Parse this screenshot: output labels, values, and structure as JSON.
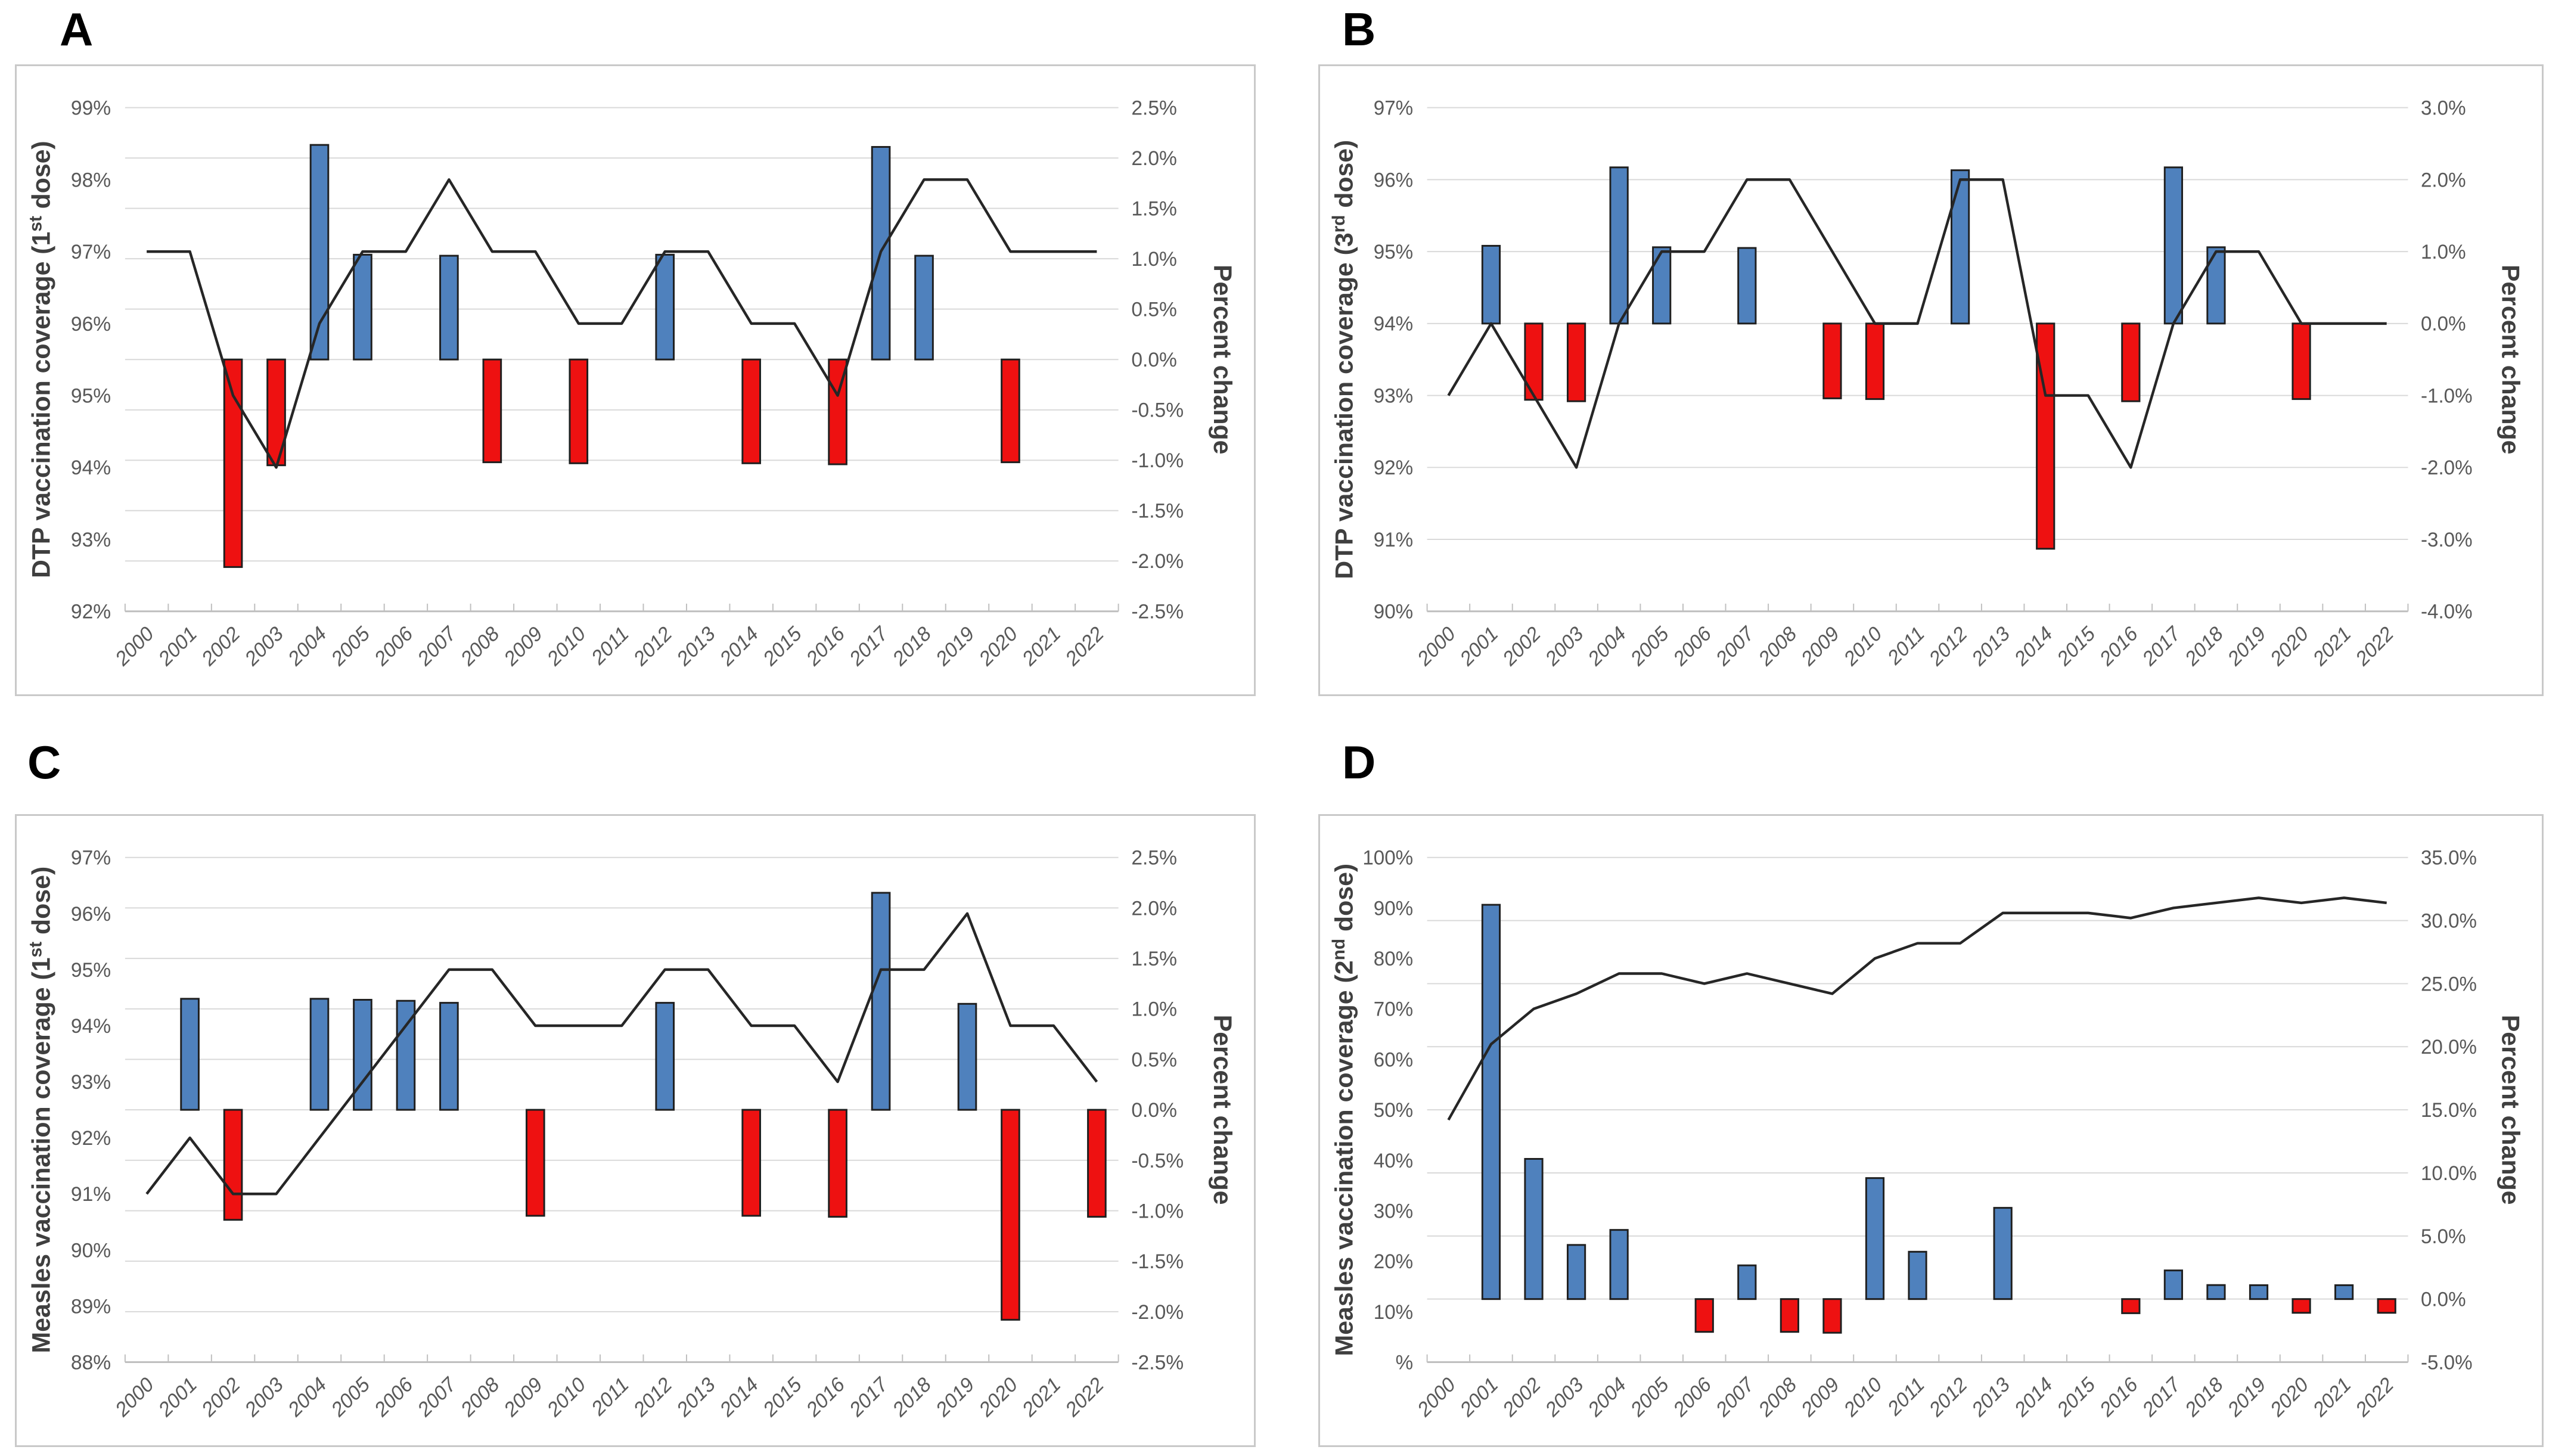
{
  "colors": {
    "bar_positive": "#4f81bd",
    "bar_negative": "#ee1111",
    "bar_border": "#1f1f1f",
    "line": "#262626",
    "grid": "#d9d9d9",
    "axis": "#bfbfbf",
    "tick_text": "#595959",
    "title_text": "#3f3f3f",
    "panel_border": "#c9c9c9",
    "background": "#ffffff"
  },
  "chart_data": [
    {
      "panel_label": "A",
      "type": "bar",
      "subtype": "combo-bar-line",
      "grid": true,
      "x_categories": [
        "2000",
        "2001",
        "2002",
        "2003",
        "2004",
        "2005",
        "2006",
        "2007",
        "2008",
        "2009",
        "2010",
        "2011",
        "2012",
        "2013",
        "2014",
        "2015",
        "2016",
        "2017",
        "2018",
        "2019",
        "2020",
        "2021",
        "2022"
      ],
      "left_axis": {
        "title_pre": "DTP vaccination coverage (1",
        "title_sup": "st",
        "title_post": " dose)",
        "min": 92,
        "max": 99,
        "ticks": [
          {
            "v": 99,
            "t": "99%"
          },
          {
            "v": 98,
            "t": "98%"
          },
          {
            "v": 97,
            "t": "97%"
          },
          {
            "v": 96,
            "t": "96%"
          },
          {
            "v": 95,
            "t": "95%"
          },
          {
            "v": 94,
            "t": "94%"
          },
          {
            "v": 93,
            "t": "93%"
          },
          {
            "v": 92,
            "t": "92%"
          }
        ]
      },
      "right_axis": {
        "title": "Percent change",
        "min": -2.5,
        "max": 2.5,
        "ticks": [
          {
            "v": 2.5,
            "t": "2.5%"
          },
          {
            "v": 2.0,
            "t": "2.0%"
          },
          {
            "v": 1.5,
            "t": "1.5%"
          },
          {
            "v": 1.0,
            "t": "1.0%"
          },
          {
            "v": 0.5,
            "t": "0.5%"
          },
          {
            "v": 0.0,
            "t": "0.0%"
          },
          {
            "v": -0.5,
            "t": "-0.5%"
          },
          {
            "v": -1.0,
            "t": "-1.0%"
          },
          {
            "v": -1.5,
            "t": "-1.5%"
          },
          {
            "v": -2.0,
            "t": "-2.0%"
          },
          {
            "v": -2.5,
            "t": "-2.5%"
          }
        ]
      },
      "line_series": {
        "name": "DTP 1st dose coverage",
        "axis": "left",
        "values": [
          97,
          97,
          95,
          94,
          96,
          97,
          97,
          98,
          97,
          97,
          96,
          96,
          97,
          97,
          96,
          96,
          95,
          97,
          98,
          98,
          97,
          97,
          97
        ]
      },
      "bar_series": {
        "name": "Percent change",
        "axis": "right",
        "values": [
          null,
          0,
          -2.06,
          -1.05,
          2.13,
          1.04,
          0,
          1.03,
          -1.02,
          0,
          -1.03,
          0,
          1.04,
          0,
          -1.03,
          0,
          -1.04,
          2.11,
          1.03,
          0,
          -1.02,
          0,
          0
        ]
      }
    },
    {
      "panel_label": "B",
      "type": "bar",
      "subtype": "combo-bar-line",
      "grid": true,
      "x_categories": [
        "2000",
        "2001",
        "2002",
        "2003",
        "2004",
        "2005",
        "2006",
        "2007",
        "2008",
        "2009",
        "2010",
        "2011",
        "2012",
        "2013",
        "2014",
        "2015",
        "2016",
        "2017",
        "2018",
        "2019",
        "2020",
        "2021",
        "2022"
      ],
      "left_axis": {
        "title_pre": "DTP vaccination coverage (3",
        "title_sup": "rd",
        "title_post": " dose)",
        "min": 90,
        "max": 97,
        "ticks": [
          {
            "v": 97,
            "t": "97%"
          },
          {
            "v": 96,
            "t": "96%"
          },
          {
            "v": 95,
            "t": "95%"
          },
          {
            "v": 94,
            "t": "94%"
          },
          {
            "v": 93,
            "t": "93%"
          },
          {
            "v": 92,
            "t": "92%"
          },
          {
            "v": 91,
            "t": "91%"
          },
          {
            "v": 90,
            "t": "90%"
          }
        ]
      },
      "right_axis": {
        "title": "Percent change",
        "min": -4.0,
        "max": 3.0,
        "ticks": [
          {
            "v": 3.0,
            "t": "3.0%"
          },
          {
            "v": 2.0,
            "t": "2.0%"
          },
          {
            "v": 1.0,
            "t": "1.0%"
          },
          {
            "v": 0.0,
            "t": "0.0%"
          },
          {
            "v": -1.0,
            "t": "-1.0%"
          },
          {
            "v": -2.0,
            "t": "-2.0%"
          },
          {
            "v": -3.0,
            "t": "-3.0%"
          },
          {
            "v": -4.0,
            "t": "-4.0%"
          }
        ]
      },
      "line_series": {
        "name": "DTP 3rd dose coverage",
        "axis": "left",
        "values": [
          93,
          94,
          93,
          92,
          94,
          95,
          95,
          96,
          96,
          95,
          94,
          94,
          96,
          96,
          93,
          93,
          92,
          94,
          95,
          95,
          94,
          94,
          94
        ]
      },
      "bar_series": {
        "name": "Percent change",
        "axis": "right",
        "values": [
          null,
          1.08,
          -1.06,
          -1.08,
          2.17,
          1.06,
          0,
          1.05,
          0,
          -1.04,
          -1.05,
          0,
          2.13,
          0,
          -3.13,
          0,
          -1.08,
          2.17,
          1.06,
          0,
          -1.05,
          0,
          0
        ]
      }
    },
    {
      "panel_label": "C",
      "type": "bar",
      "subtype": "combo-bar-line",
      "grid": true,
      "x_categories": [
        "2000",
        "2001",
        "2002",
        "2003",
        "2004",
        "2005",
        "2006",
        "2007",
        "2008",
        "2009",
        "2010",
        "2011",
        "2012",
        "2013",
        "2014",
        "2015",
        "2016",
        "2017",
        "2018",
        "2019",
        "2020",
        "2021",
        "2022"
      ],
      "left_axis": {
        "title_pre": "Measles vaccination coverage (1",
        "title_sup": "st",
        "title_post": " dose)",
        "min": 88,
        "max": 97,
        "ticks": [
          {
            "v": 97,
            "t": "97%"
          },
          {
            "v": 96,
            "t": "96%"
          },
          {
            "v": 95,
            "t": "95%"
          },
          {
            "v": 94,
            "t": "94%"
          },
          {
            "v": 93,
            "t": "93%"
          },
          {
            "v": 92,
            "t": "92%"
          },
          {
            "v": 91,
            "t": "91%"
          },
          {
            "v": 90,
            "t": "90%"
          },
          {
            "v": 89,
            "t": "89%"
          },
          {
            "v": 88,
            "t": "88%"
          }
        ]
      },
      "right_axis": {
        "title": "Percent change",
        "min": -2.5,
        "max": 2.5,
        "ticks": [
          {
            "v": 2.5,
            "t": "2.5%"
          },
          {
            "v": 2.0,
            "t": "2.0%"
          },
          {
            "v": 1.5,
            "t": "1.5%"
          },
          {
            "v": 1.0,
            "t": "1.0%"
          },
          {
            "v": 0.5,
            "t": "0.5%"
          },
          {
            "v": 0.0,
            "t": "0.0%"
          },
          {
            "v": -0.5,
            "t": "-0.5%"
          },
          {
            "v": -1.0,
            "t": "-1.0%"
          },
          {
            "v": -1.5,
            "t": "-1.5%"
          },
          {
            "v": -2.0,
            "t": "-2.0%"
          },
          {
            "v": -2.5,
            "t": "-2.5%"
          }
        ]
      },
      "line_series": {
        "name": "Measles 1st dose coverage",
        "axis": "left",
        "values": [
          91,
          92,
          91,
          91,
          92,
          93,
          94,
          95,
          95,
          94,
          94,
          94,
          95,
          95,
          94,
          94,
          93,
          95,
          95,
          96,
          94,
          94,
          93
        ]
      },
      "bar_series": {
        "name": "Percent change",
        "axis": "right",
        "values": [
          null,
          1.1,
          -1.09,
          0,
          1.1,
          1.09,
          1.08,
          1.06,
          0,
          -1.05,
          0,
          0,
          1.06,
          0,
          -1.05,
          0,
          -1.06,
          2.15,
          0,
          1.05,
          -2.08,
          0,
          -1.06
        ]
      }
    },
    {
      "panel_label": "D",
      "type": "bar",
      "subtype": "combo-bar-line",
      "grid": true,
      "x_categories": [
        "2000",
        "2001",
        "2002",
        "2003",
        "2004",
        "2005",
        "2006",
        "2007",
        "2008",
        "2009",
        "2010",
        "2011",
        "2012",
        "2013",
        "2014",
        "2015",
        "2016",
        "2017",
        "2018",
        "2019",
        "2020",
        "2021",
        "2022"
      ],
      "left_axis": {
        "title_pre": "Measles vaccination coverage (2",
        "title_sup": "nd",
        "title_post": " dose)",
        "min": 0,
        "max": 100,
        "ticks": [
          {
            "v": 100,
            "t": "100%"
          },
          {
            "v": 90,
            "t": "90%"
          },
          {
            "v": 80,
            "t": "80%"
          },
          {
            "v": 70,
            "t": "70%"
          },
          {
            "v": 60,
            "t": "60%"
          },
          {
            "v": 50,
            "t": "50%"
          },
          {
            "v": 40,
            "t": "40%"
          },
          {
            "v": 30,
            "t": "30%"
          },
          {
            "v": 20,
            "t": "20%"
          },
          {
            "v": 10,
            "t": "10%"
          },
          {
            "v": 0,
            "t": "%"
          }
        ]
      },
      "right_axis": {
        "title": "Percent change",
        "min": -5.0,
        "max": 35.0,
        "ticks": [
          {
            "v": 35,
            "t": "35.0%"
          },
          {
            "v": 30,
            "t": "30.0%"
          },
          {
            "v": 25,
            "t": "25.0%"
          },
          {
            "v": 20,
            "t": "20.0%"
          },
          {
            "v": 15,
            "t": "15.0%"
          },
          {
            "v": 10,
            "t": "10.0%"
          },
          {
            "v": 5,
            "t": "5.0%"
          },
          {
            "v": 0,
            "t": "0.0%"
          },
          {
            "v": -5,
            "t": "-5.0%"
          }
        ]
      },
      "line_series": {
        "name": "Measles 2nd dose coverage",
        "axis": "left",
        "values": [
          48,
          63,
          70,
          73,
          77,
          77,
          75,
          77,
          75,
          73,
          80,
          83,
          83,
          89,
          89,
          89,
          88,
          90,
          91,
          92,
          91,
          92,
          91
        ]
      },
      "bar_series": {
        "name": "Percent change",
        "axis": "right",
        "values": [
          null,
          31.25,
          11.11,
          4.29,
          5.48,
          0,
          -2.6,
          2.67,
          -2.6,
          -2.67,
          9.59,
          3.75,
          0,
          7.23,
          0,
          0,
          -1.12,
          2.27,
          1.11,
          1.1,
          -1.09,
          1.1,
          -1.09
        ]
      }
    }
  ]
}
